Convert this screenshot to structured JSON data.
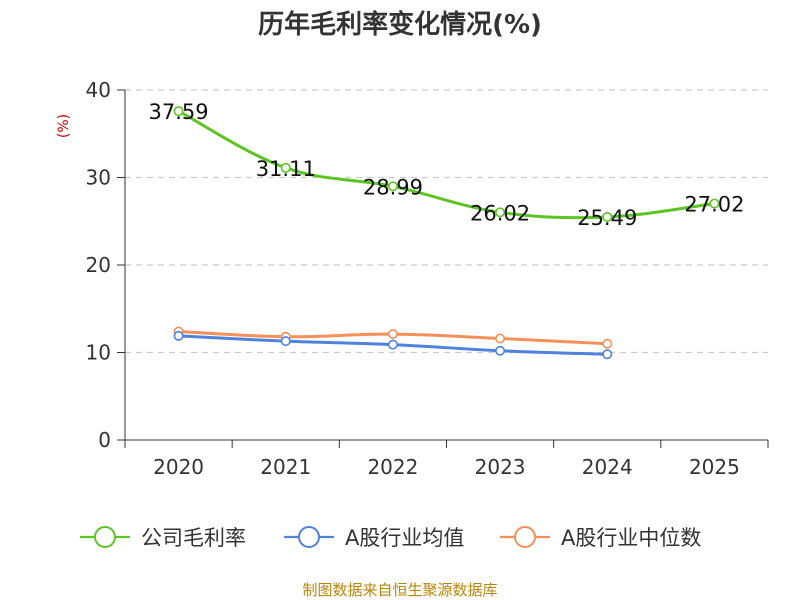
{
  "chart_data": {
    "type": "line",
    "title": "历年毛利率变化情况(%)",
    "ylabel": "(%)",
    "xlabel": "",
    "ylim": [
      0,
      40
    ],
    "yticks": [
      0,
      10,
      20,
      30,
      40
    ],
    "categories": [
      "2020",
      "2021",
      "2022",
      "2023",
      "2024",
      "2025"
    ],
    "grid": true,
    "legend_position": "bottom",
    "series": [
      {
        "name": "公司毛利率",
        "color": "#5cc524",
        "values": [
          37.59,
          31.11,
          28.99,
          26.02,
          25.49,
          27.02
        ],
        "labels": [
          "37.59",
          "31.11",
          "28.99",
          "26.02",
          "25.49",
          "27.02"
        ]
      },
      {
        "name": "A股行业均值",
        "color": "#4f82dc",
        "values": [
          11.9,
          11.3,
          10.9,
          10.2,
          9.8,
          null
        ]
      },
      {
        "name": "A股行业中位数",
        "color": "#f5905a",
        "values": [
          12.4,
          11.8,
          12.1,
          11.6,
          11.0,
          null
        ]
      }
    ],
    "source": "制图数据来自恒生聚源数据库"
  }
}
